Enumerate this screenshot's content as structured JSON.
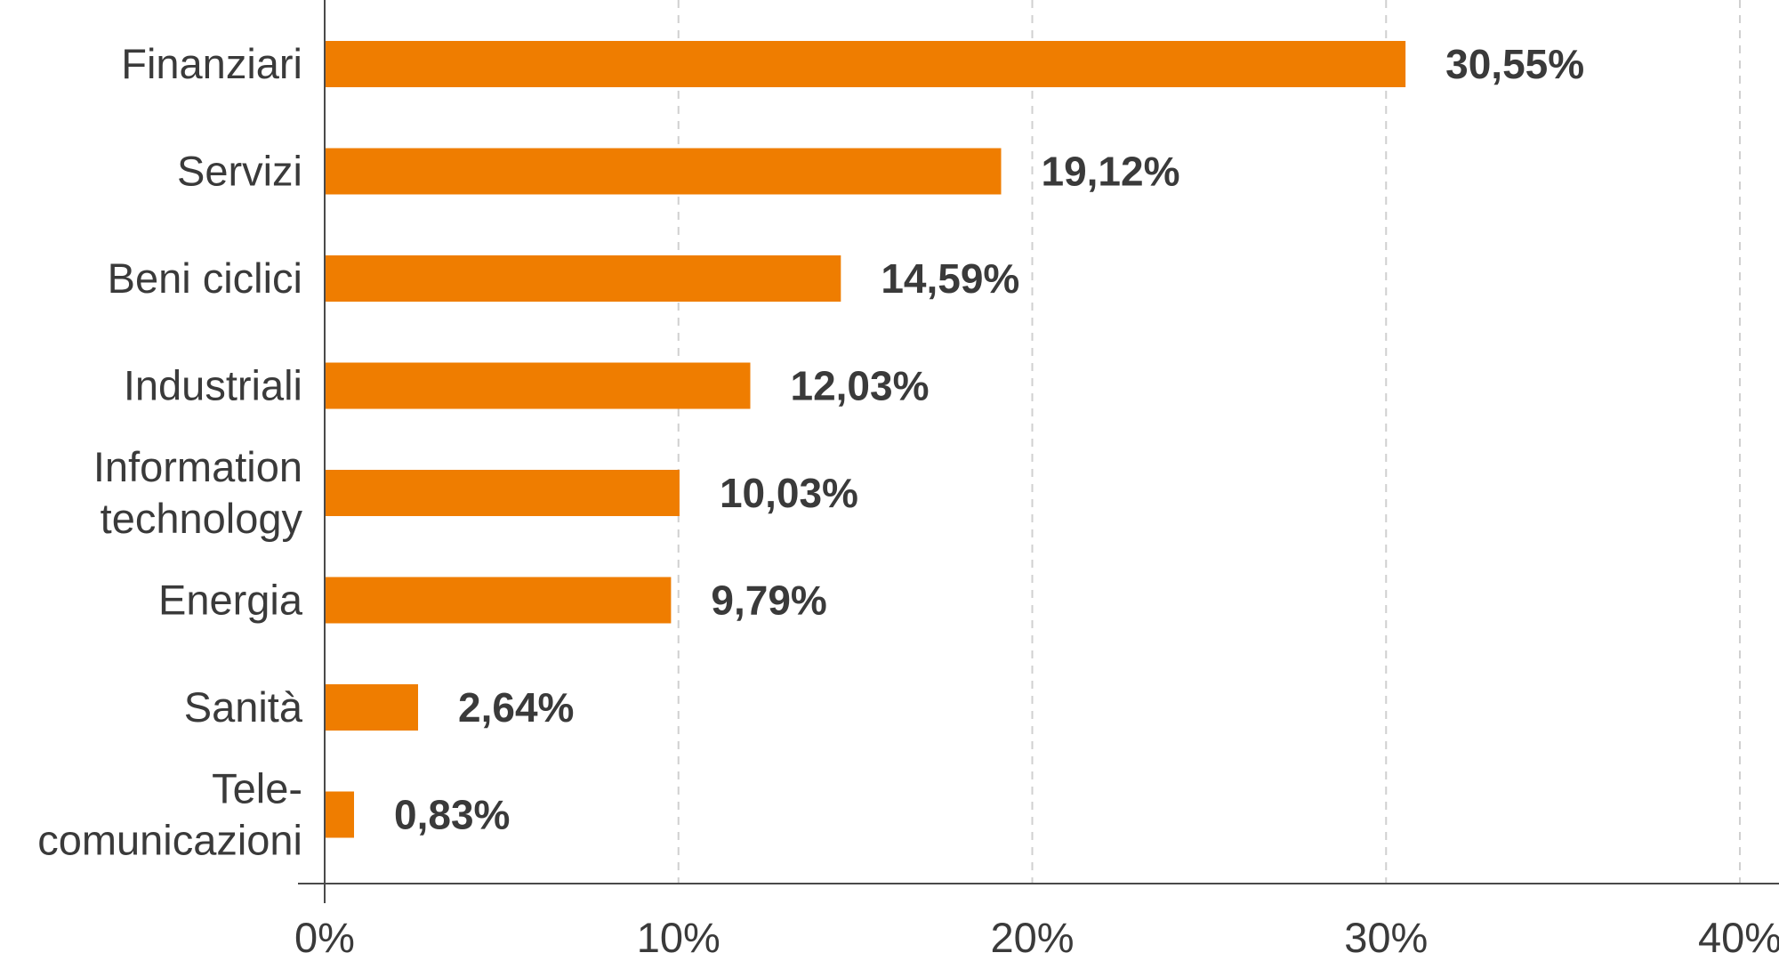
{
  "chart_data": {
    "type": "bar",
    "orientation": "horizontal",
    "categories": [
      [
        "Finanziari"
      ],
      [
        "Servizi"
      ],
      [
        "Beni ciclici"
      ],
      [
        "Industriali"
      ],
      [
        "Information",
        "technology"
      ],
      [
        "Energia"
      ],
      [
        "Sanità"
      ],
      [
        "Tele-",
        "comunicazioni"
      ]
    ],
    "values": [
      30.55,
      19.12,
      14.59,
      12.03,
      10.03,
      9.79,
      2.64,
      0.83
    ],
    "value_labels": [
      "30,55%",
      "19,12%",
      "14,59%",
      "12,03%",
      "10,03%",
      "9,79%",
      "2,64%",
      "0,83%"
    ],
    "xlim": [
      0,
      40
    ],
    "xticks": [
      0,
      10,
      20,
      30,
      40
    ],
    "xtick_labels": [
      "0%",
      "10%",
      "20%",
      "30%",
      "40%"
    ],
    "grid": "vertical dashed",
    "bar_color": "#ef7d00",
    "text_color": "#3a3a3a"
  }
}
